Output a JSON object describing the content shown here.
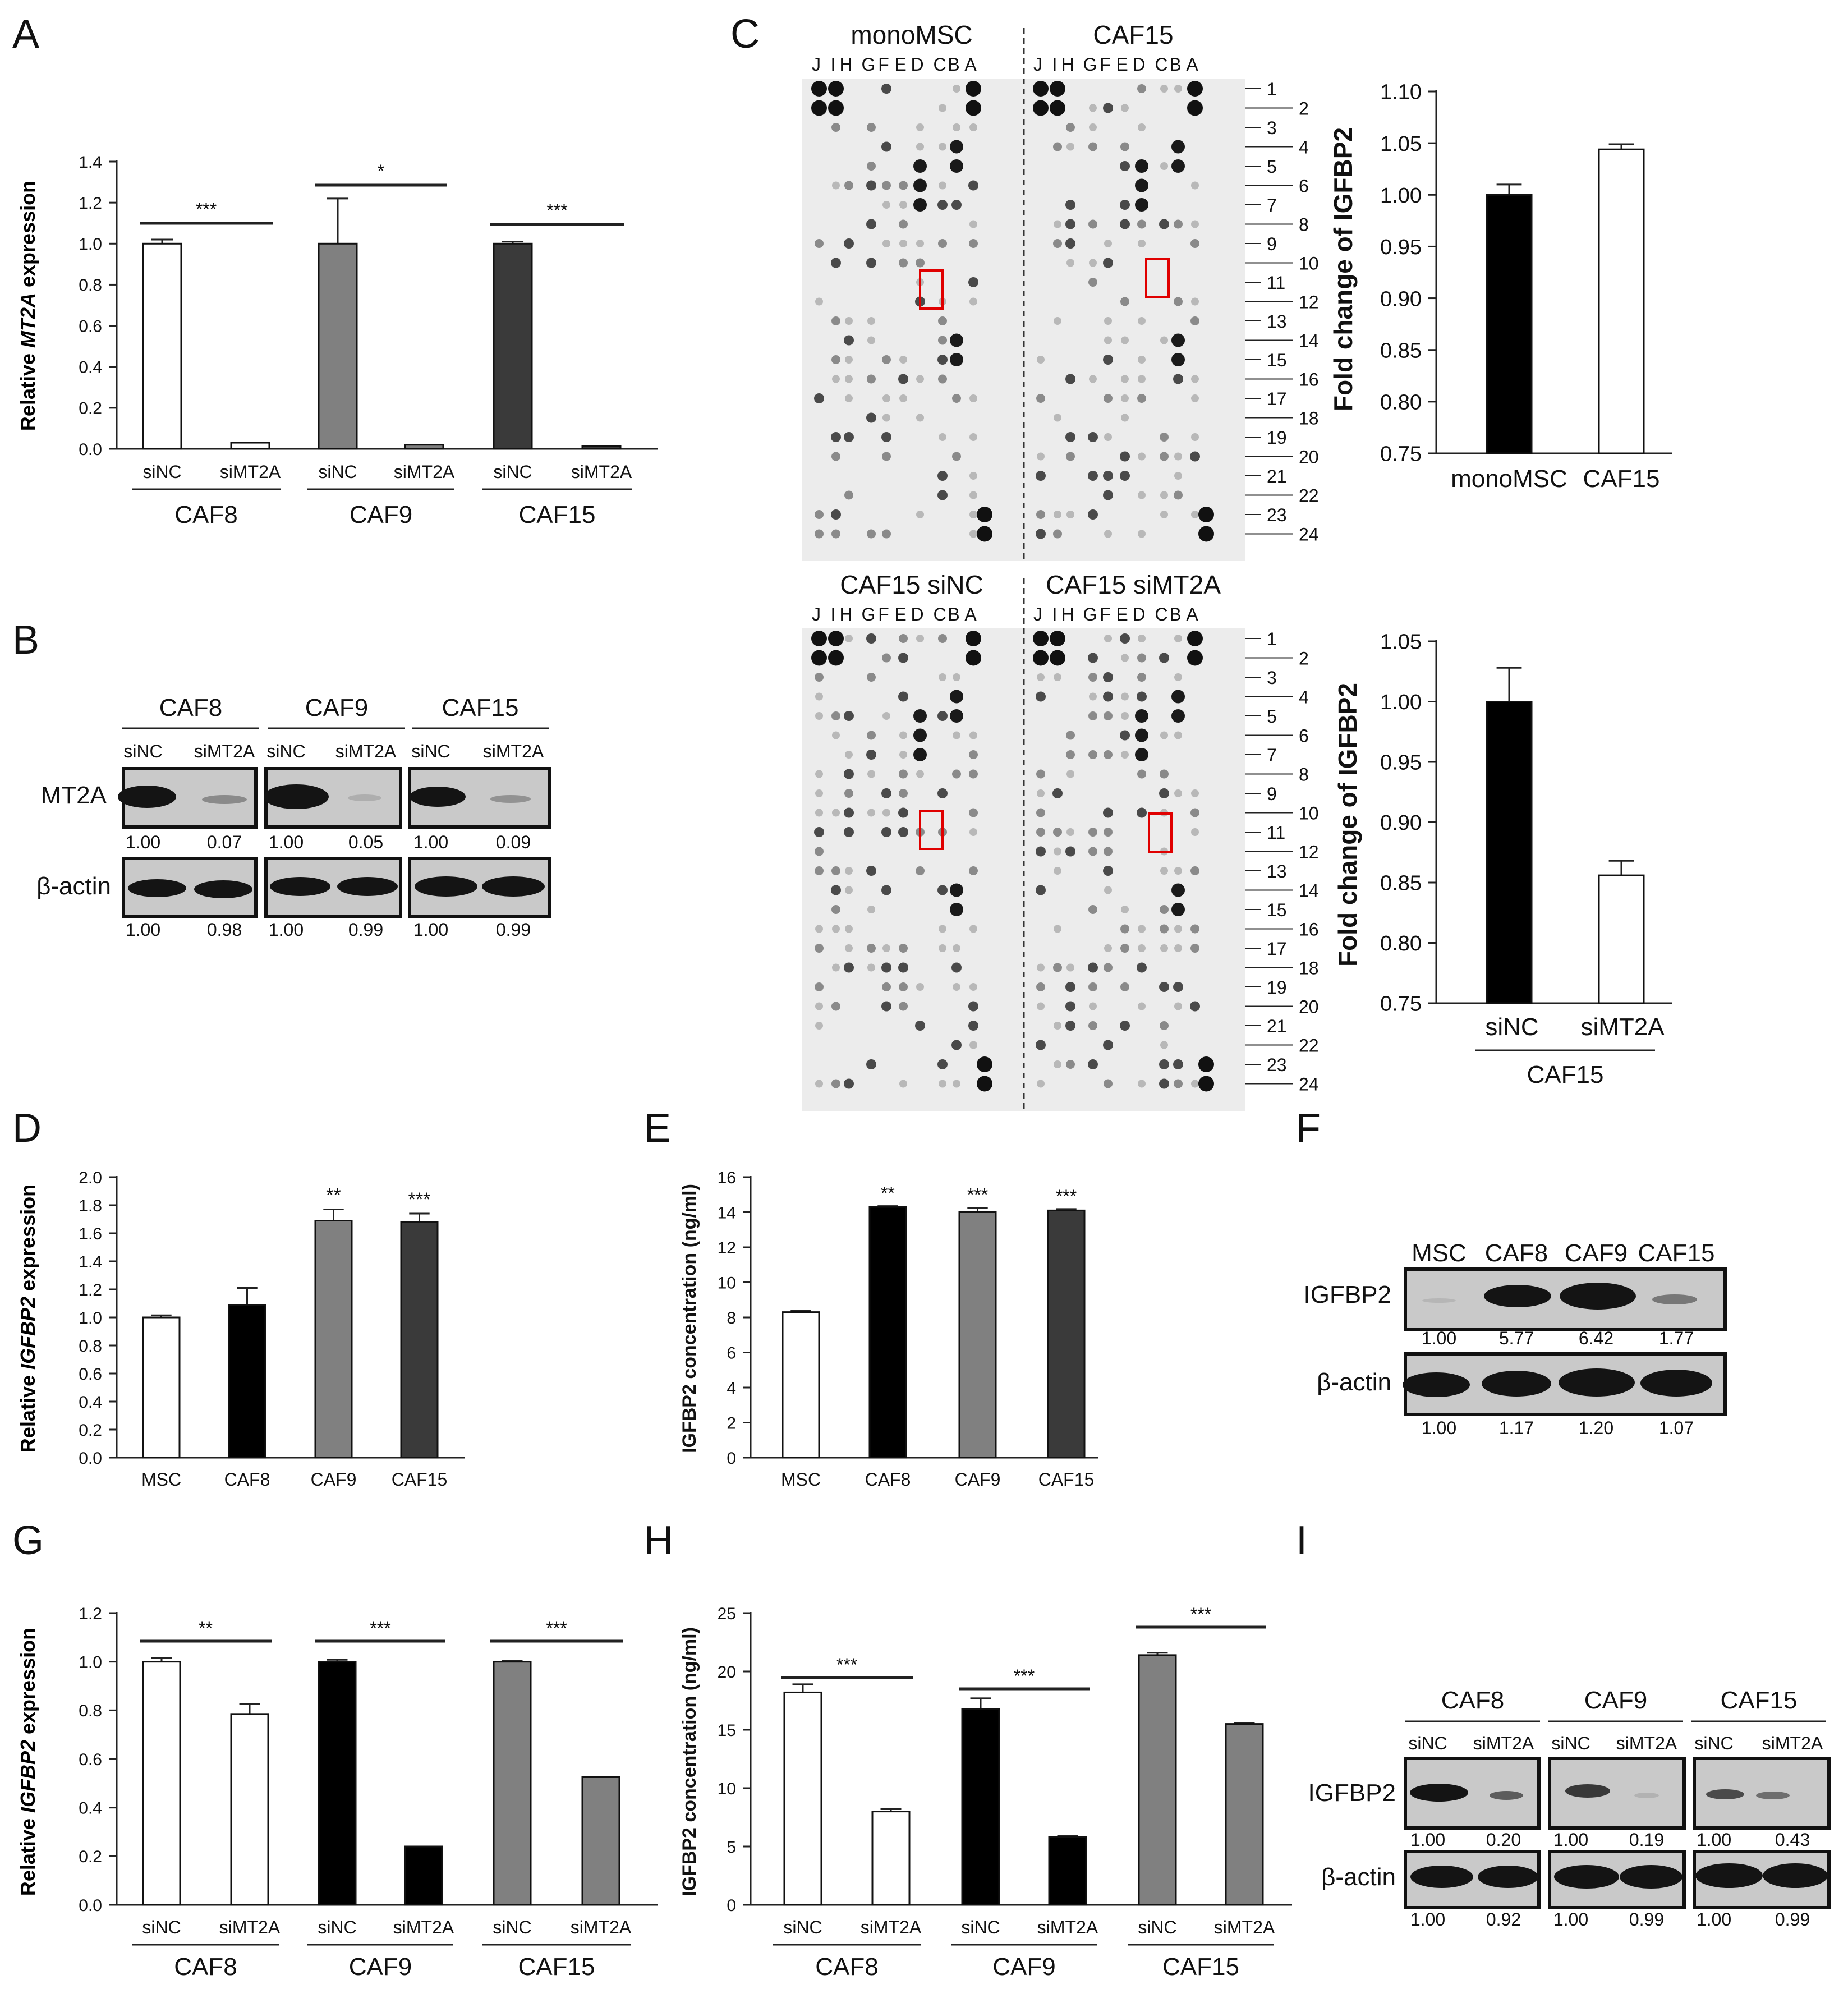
{
  "panel_labels": [
    "A",
    "B",
    "C",
    "D",
    "E",
    "F",
    "G",
    "H",
    "I"
  ],
  "panelA": {
    "ylabel_pre": "Relative ",
    "ylabel_gene": "MT2A",
    "ylabel_post": " expression",
    "ylim": [
      0,
      1.4
    ],
    "yticks": [
      "0.0",
      "0.2",
      "0.4",
      "0.6",
      "0.8",
      "1.0",
      "1.2",
      "1.4"
    ],
    "groups": [
      "CAF8",
      "CAF9",
      "CAF15"
    ],
    "conditions": [
      "siNC",
      "siMT2A"
    ],
    "values": [
      1.0,
      0.03,
      1.0,
      0.02,
      1.0,
      0.015
    ],
    "errors": [
      0.02,
      0,
      0.22,
      0,
      0.01,
      0
    ],
    "fills": [
      "#ffffff",
      "#ffffff",
      "#808080",
      "#808080",
      "#3a3a3a",
      "#3a3a3a"
    ],
    "sig": [
      "***",
      "*",
      "***"
    ]
  },
  "panelB": {
    "groups": [
      "CAF8",
      "CAF9",
      "CAF15"
    ],
    "conditions": [
      "siNC",
      "siMT2A"
    ],
    "rows": [
      {
        "label": "MT2A",
        "values": [
          "1.00",
          "0.07",
          "1.00",
          "0.05",
          "1.00",
          "0.09"
        ]
      },
      {
        "label": "β-actin",
        "values": [
          "1.00",
          "0.98",
          "1.00",
          "0.99",
          "1.00",
          "0.99"
        ]
      }
    ]
  },
  "panelC": {
    "column_letters": [
      "J",
      "I",
      "H",
      "G",
      "F",
      "E",
      "D",
      "C",
      "B",
      "A"
    ],
    "row_numbers": [
      "1",
      "2",
      "3",
      "4",
      "5",
      "6",
      "7",
      "8",
      "9",
      "10",
      "11",
      "12",
      "13",
      "14",
      "15",
      "16",
      "17",
      "18",
      "19",
      "20",
      "21",
      "22",
      "23",
      "24"
    ],
    "array_top": {
      "left_title": "monoMSC",
      "right_title": "CAF15"
    },
    "array_bottom": {
      "left_title": "CAF15 siNC",
      "right_title": "CAF15 siMT2A"
    },
    "chart_top": {
      "ylabel": "Fold change of IGFBP2",
      "ylim": [
        0.75,
        1.1
      ],
      "yticks": [
        "0.75",
        "0.80",
        "0.85",
        "0.90",
        "0.95",
        "1.00",
        "1.05",
        "1.10"
      ],
      "categories": [
        "monoMSC",
        "CAF15"
      ],
      "values": [
        1.0,
        1.044
      ],
      "errors": [
        0.01,
        0.005
      ],
      "fills": [
        "#000000",
        "#ffffff"
      ]
    },
    "chart_bottom": {
      "ylabel": "Fold change of IGFBP2",
      "ylim": [
        0.75,
        1.05
      ],
      "yticks": [
        "0.75",
        "0.80",
        "0.85",
        "0.90",
        "0.95",
        "1.00",
        "1.05"
      ],
      "categories": [
        "siNC",
        "siMT2A"
      ],
      "group": "CAF15",
      "values": [
        1.0,
        0.856
      ],
      "errors": [
        0.028,
        0.012
      ],
      "fills": [
        "#000000",
        "#ffffff"
      ]
    }
  },
  "panelD": {
    "ylabel_pre": "Relative ",
    "ylabel_gene": "IGFBP2",
    "ylabel_post": " expression",
    "ylim": [
      0,
      2.0
    ],
    "yticks": [
      "0.0",
      "0.2",
      "0.4",
      "0.6",
      "0.8",
      "1.0",
      "1.2",
      "1.4",
      "1.6",
      "1.8",
      "2.0"
    ],
    "categories": [
      "MSC",
      "CAF8",
      "CAF9",
      "CAF15"
    ],
    "values": [
      1.0,
      1.09,
      1.69,
      1.68
    ],
    "errors": [
      0.015,
      0.12,
      0.08,
      0.06
    ],
    "fills": [
      "#ffffff",
      "#000000",
      "#808080",
      "#3a3a3a"
    ],
    "sig": [
      "",
      "",
      "**",
      "***"
    ]
  },
  "panelE": {
    "ylabel": "IGFBP2 concentration (ng/ml)",
    "ylim": [
      0,
      16
    ],
    "yticks": [
      "0",
      "2",
      "4",
      "6",
      "8",
      "10",
      "12",
      "14",
      "16"
    ],
    "categories": [
      "MSC",
      "CAF8",
      "CAF9",
      "CAF15"
    ],
    "values": [
      8.3,
      14.3,
      14.0,
      14.1
    ],
    "errors": [
      0.08,
      0.05,
      0.25,
      0.08
    ],
    "fills": [
      "#ffffff",
      "#000000",
      "#808080",
      "#3a3a3a"
    ],
    "sig": [
      "",
      "**",
      "***",
      "***"
    ]
  },
  "panelF": {
    "lanes": [
      "MSC",
      "CAF8",
      "CAF9",
      "CAF15"
    ],
    "rows": [
      {
        "label": "IGFBP2",
        "values": [
          "1.00",
          "5.77",
          "6.42",
          "1.77"
        ]
      },
      {
        "label": "β-actin",
        "values": [
          "1.00",
          "1.17",
          "1.20",
          "1.07"
        ]
      }
    ]
  },
  "panelG": {
    "ylabel_pre": "Relative ",
    "ylabel_gene": "IGFBP2",
    "ylabel_post": " expression",
    "ylim": [
      0,
      1.2
    ],
    "yticks": [
      "0.0",
      "0.2",
      "0.4",
      "0.6",
      "0.8",
      "1.0",
      "1.2"
    ],
    "groups": [
      "CAF8",
      "CAF9",
      "CAF15"
    ],
    "conditions": [
      "siNC",
      "siMT2A"
    ],
    "values": [
      1.0,
      0.785,
      1.0,
      0.24,
      1.0,
      0.525
    ],
    "errors": [
      0.015,
      0.04,
      0.008,
      0,
      0.005,
      0
    ],
    "fills": [
      "#ffffff",
      "#ffffff",
      "#000000",
      "#000000",
      "#808080",
      "#808080"
    ],
    "sig": [
      "**",
      "***",
      "***"
    ]
  },
  "panelH": {
    "ylabel": "IGFBP2 concentration (ng/ml)",
    "ylim": [
      0,
      25
    ],
    "yticks": [
      "0",
      "5",
      "10",
      "15",
      "20",
      "25"
    ],
    "groups": [
      "CAF8",
      "CAF9",
      "CAF15"
    ],
    "conditions": [
      "siNC",
      "siMT2A"
    ],
    "values": [
      18.2,
      8.0,
      16.8,
      5.8,
      21.4,
      15.5
    ],
    "errors": [
      0.7,
      0.2,
      0.9,
      0.1,
      0.2,
      0.1
    ],
    "fills": [
      "#ffffff",
      "#ffffff",
      "#000000",
      "#000000",
      "#808080",
      "#808080"
    ],
    "sig": [
      "***",
      "***",
      "***"
    ]
  },
  "panelI": {
    "groups": [
      "CAF8",
      "CAF9",
      "CAF15"
    ],
    "conditions": [
      "siNC",
      "siMT2A"
    ],
    "rows": [
      {
        "label": "IGFBP2",
        "values": [
          "1.00",
          "0.20",
          "1.00",
          "0.19",
          "1.00",
          "0.43"
        ]
      },
      {
        "label": "β-actin",
        "values": [
          "1.00",
          "0.92",
          "1.00",
          "0.99",
          "1.00",
          "0.99"
        ]
      }
    ]
  },
  "chart_data": [
    {
      "type": "bar",
      "panel": "A",
      "title": "",
      "xlabel": "",
      "ylabel": "Relative MT2A expression",
      "ylim": [
        0,
        1.4
      ],
      "categories": [
        "CAF8",
        "CAF9",
        "CAF15"
      ],
      "series": [
        {
          "name": "siNC",
          "values": [
            1.0,
            1.0,
            1.0
          ]
        },
        {
          "name": "siMT2A",
          "values": [
            0.03,
            0.02,
            0.015
          ]
        }
      ],
      "annotations": [
        "***",
        "*",
        "***"
      ]
    },
    {
      "type": "bar",
      "panel": "C-top",
      "ylabel": "Fold change of IGFBP2",
      "ylim": [
        0.75,
        1.1
      ],
      "categories": [
        "monoMSC",
        "CAF15"
      ],
      "values": [
        1.0,
        1.044
      ]
    },
    {
      "type": "bar",
      "panel": "C-bottom",
      "ylabel": "Fold change of IGFBP2",
      "ylim": [
        0.75,
        1.05
      ],
      "categories": [
        "siNC",
        "siMT2A"
      ],
      "xlabel": "CAF15",
      "values": [
        1.0,
        0.856
      ]
    },
    {
      "type": "bar",
      "panel": "D",
      "ylabel": "Relative IGFBP2 expression",
      "ylim": [
        0,
        2.0
      ],
      "categories": [
        "MSC",
        "CAF8",
        "CAF9",
        "CAF15"
      ],
      "values": [
        1.0,
        1.09,
        1.69,
        1.68
      ],
      "annotations": [
        "",
        "",
        "**",
        "***"
      ]
    },
    {
      "type": "bar",
      "panel": "E",
      "ylabel": "IGFBP2 concentration (ng/ml)",
      "ylim": [
        0,
        16
      ],
      "categories": [
        "MSC",
        "CAF8",
        "CAF9",
        "CAF15"
      ],
      "values": [
        8.3,
        14.3,
        14.0,
        14.1
      ],
      "annotations": [
        "",
        "**",
        "***",
        "***"
      ]
    },
    {
      "type": "bar",
      "panel": "G",
      "ylabel": "Relative IGFBP2 expression",
      "ylim": [
        0,
        1.2
      ],
      "categories": [
        "CAF8",
        "CAF9",
        "CAF15"
      ],
      "series": [
        {
          "name": "siNC",
          "values": [
            1.0,
            1.0,
            1.0
          ]
        },
        {
          "name": "siMT2A",
          "values": [
            0.785,
            0.24,
            0.525
          ]
        }
      ],
      "annotations": [
        "**",
        "***",
        "***"
      ]
    },
    {
      "type": "bar",
      "panel": "H",
      "ylabel": "IGFBP2 concentration (ng/ml)",
      "ylim": [
        0,
        25
      ],
      "categories": [
        "CAF8",
        "CAF9",
        "CAF15"
      ],
      "series": [
        {
          "name": "siNC",
          "values": [
            18.2,
            16.8,
            21.4
          ]
        },
        {
          "name": "siMT2A",
          "values": [
            8.0,
            5.8,
            15.5
          ]
        }
      ],
      "annotations": [
        "***",
        "***",
        "***"
      ]
    }
  ]
}
